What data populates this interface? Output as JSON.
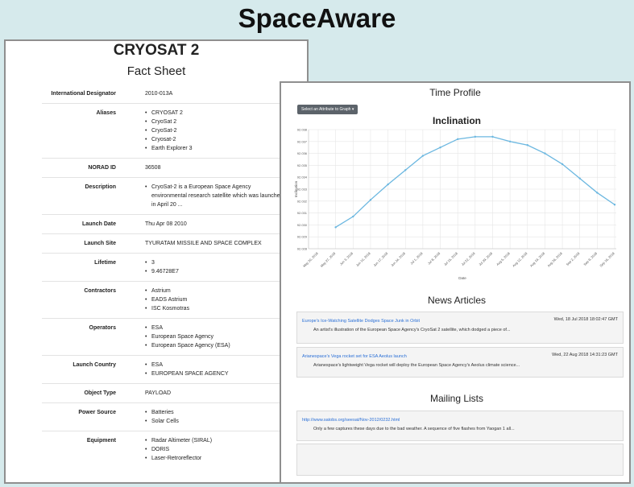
{
  "app": {
    "title": "SpaceAware"
  },
  "fact_sheet": {
    "name": "CRYOSAT 2",
    "subtitle": "Fact Sheet",
    "rows": [
      {
        "label": "International Designator",
        "text": "2010-013A"
      },
      {
        "label": "Aliases",
        "items": [
          "CRYOSAT 2",
          "CryoSat 2",
          "CryoSat-2",
          "Cryosat-2",
          "Earth Explorer 3"
        ]
      },
      {
        "label": "NORAD ID",
        "text": "36508"
      },
      {
        "label": "Description",
        "items": [
          "CryoSat-2 is a European Space Agency environmental research satellite which was launched in April 20 ..."
        ]
      },
      {
        "label": "Launch Date",
        "text": "Thu Apr 08 2010"
      },
      {
        "label": "Launch Site",
        "text": "TYURATAM MISSILE AND SPACE COMPLEX"
      },
      {
        "label": "Lifetime",
        "items": [
          "3",
          "9.46728E7"
        ]
      },
      {
        "label": "Contractors",
        "items": [
          "Astrium",
          "EADS Astrium",
          "ISC Kosmotras"
        ]
      },
      {
        "label": "Operators",
        "items": [
          "ESA",
          "European Space Agency",
          "European Space Agency (ESA)"
        ]
      },
      {
        "label": "Launch Country",
        "items": [
          "ESA",
          "EUROPEAN SPACE AGENCY"
        ]
      },
      {
        "label": "Object Type",
        "text": "PAYLOAD"
      },
      {
        "label": "Power Source",
        "items": [
          "Batteries",
          "Solar Cells"
        ]
      },
      {
        "label": "Equipment",
        "items": [
          "Radar Altimeter (SIRAL)",
          "DORIS",
          "Laser-Retroreflector"
        ]
      }
    ]
  },
  "time_profile": {
    "title": "Time Profile",
    "attribute_button": "Select an Attribute to Graph",
    "chart_title": "Inclination"
  },
  "chart_data": {
    "type": "line",
    "title": "Inclination",
    "xlabel": "Date",
    "ylabel": "Inclination",
    "ylim": [
      92.028,
      92.038
    ],
    "yticks": [
      "92.028",
      "92.029",
      "92.030",
      "92.031",
      "92.032",
      "92.033",
      "92.034",
      "92.035",
      "92.036",
      "92.037",
      "92.038"
    ],
    "xticks": [
      "May 20, 2018",
      "May 27, 2018",
      "Jun 3, 2018",
      "Jun 10, 2018",
      "Jun 17, 2018",
      "Jun 24, 2018",
      "Jul 1, 2018",
      "Jul 8, 2018",
      "Jul 15, 2018",
      "Jul 22, 2018",
      "Jul 29, 2018",
      "Aug 5, 2018",
      "Aug 12, 2018",
      "Aug 19, 2018",
      "Aug 26, 2018",
      "Sep 2, 2018",
      "Sep 9, 2018",
      "Sep 16, 2018"
    ],
    "grid": true,
    "color": "#6bb7e0",
    "series": [
      {
        "x": [
          1,
          2,
          3,
          4,
          5,
          6,
          7,
          8,
          9,
          10,
          11,
          12,
          13,
          14,
          15,
          16,
          17
        ],
        "values": [
          92.0298,
          92.0307,
          92.0321,
          92.0334,
          92.0346,
          92.0358,
          92.0365,
          92.0372,
          92.0374,
          92.0374,
          92.037,
          92.0367,
          92.036,
          92.0351,
          92.0339,
          92.0327,
          92.0317
        ]
      }
    ]
  },
  "news": {
    "title": "News Articles",
    "articles": [
      {
        "headline": "Europe's Ice-Watching Satellite Dodges Space Junk in Orbit",
        "date": "Wed, 18 Jul 2018 18:02:47 GMT",
        "snippet": "An artist's illustration of the European Space Agency's CryoSat 2 satellite, which dodged a piece of..."
      },
      {
        "headline": "Arianespace's Vega rocket set for ESA Aeolus launch",
        "date": "Wed, 22 Aug 2018 14:31:23 GMT",
        "snippet": "Arianespace's lightweight Vega rocket will deploy the European Space Agency's Aeolus climate science..."
      }
    ]
  },
  "mailing": {
    "title": "Mailing Lists",
    "items": [
      {
        "link": "http://www.satobs.org/seesat/Nov-2012/0232.html",
        "snippet": "Only a few captures these days due to the bad weather. A sequence of five flashes from Yaogan 1 all..."
      }
    ]
  }
}
